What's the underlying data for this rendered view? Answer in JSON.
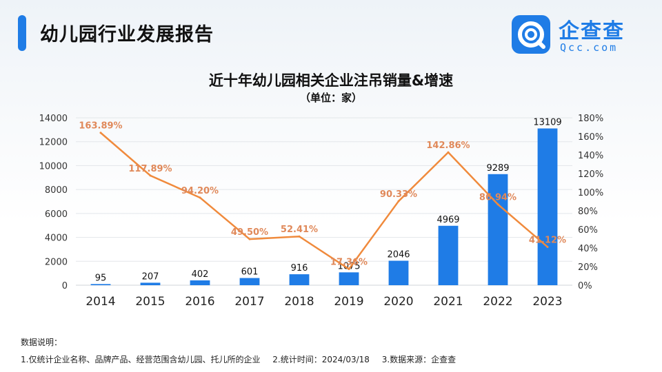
{
  "header": {
    "title": "幼儿园行业发展报告"
  },
  "logo": {
    "name": "企查查",
    "sub": "Qcc.com"
  },
  "colors": {
    "bar": "#1f7ce6",
    "line": "#f08a3c",
    "line_label": "#e0895a",
    "accent": "#1f7ce6"
  },
  "chart_data": {
    "type": "bar",
    "title": "近十年幼儿园相关企业注吊销量&增速",
    "subtitle": "（单位：家）",
    "categories": [
      "2014",
      "2015",
      "2016",
      "2017",
      "2018",
      "2019",
      "2020",
      "2021",
      "2022",
      "2023"
    ],
    "series": [
      {
        "type": "bar",
        "axis": "left",
        "values": [
          95,
          207,
          402,
          601,
          916,
          1075,
          2046,
          4969,
          9289,
          13109
        ]
      },
      {
        "type": "line",
        "axis": "right",
        "values": [
          163.89,
          117.89,
          94.2,
          49.5,
          52.41,
          17.36,
          90.33,
          142.86,
          86.94,
          41.12
        ],
        "labels": [
          "163.89%",
          "117.89%",
          "94.20%",
          "49.50%",
          "52.41%",
          "17.36%",
          "90.33%",
          "142.86%",
          "86.94%",
          "41.12%"
        ]
      }
    ],
    "y_left": {
      "min": 0,
      "max": 14000,
      "ticks": [
        "0",
        "2000",
        "4000",
        "6000",
        "8000",
        "10000",
        "12000",
        "14000"
      ]
    },
    "y_right": {
      "min": 0,
      "max": 180,
      "ticks": [
        "0%",
        "20%",
        "40%",
        "60%",
        "80%",
        "100%",
        "120%",
        "140%",
        "160%",
        "180%"
      ]
    },
    "grid": true
  },
  "notes": {
    "heading": "数据说明：",
    "item1": "1.仅统计企业名称、品牌产品、经营范围含幼儿园、托儿所的企业",
    "item2": "2.统计时间：2024/03/18",
    "item3": "3.数据来源：企查查"
  }
}
